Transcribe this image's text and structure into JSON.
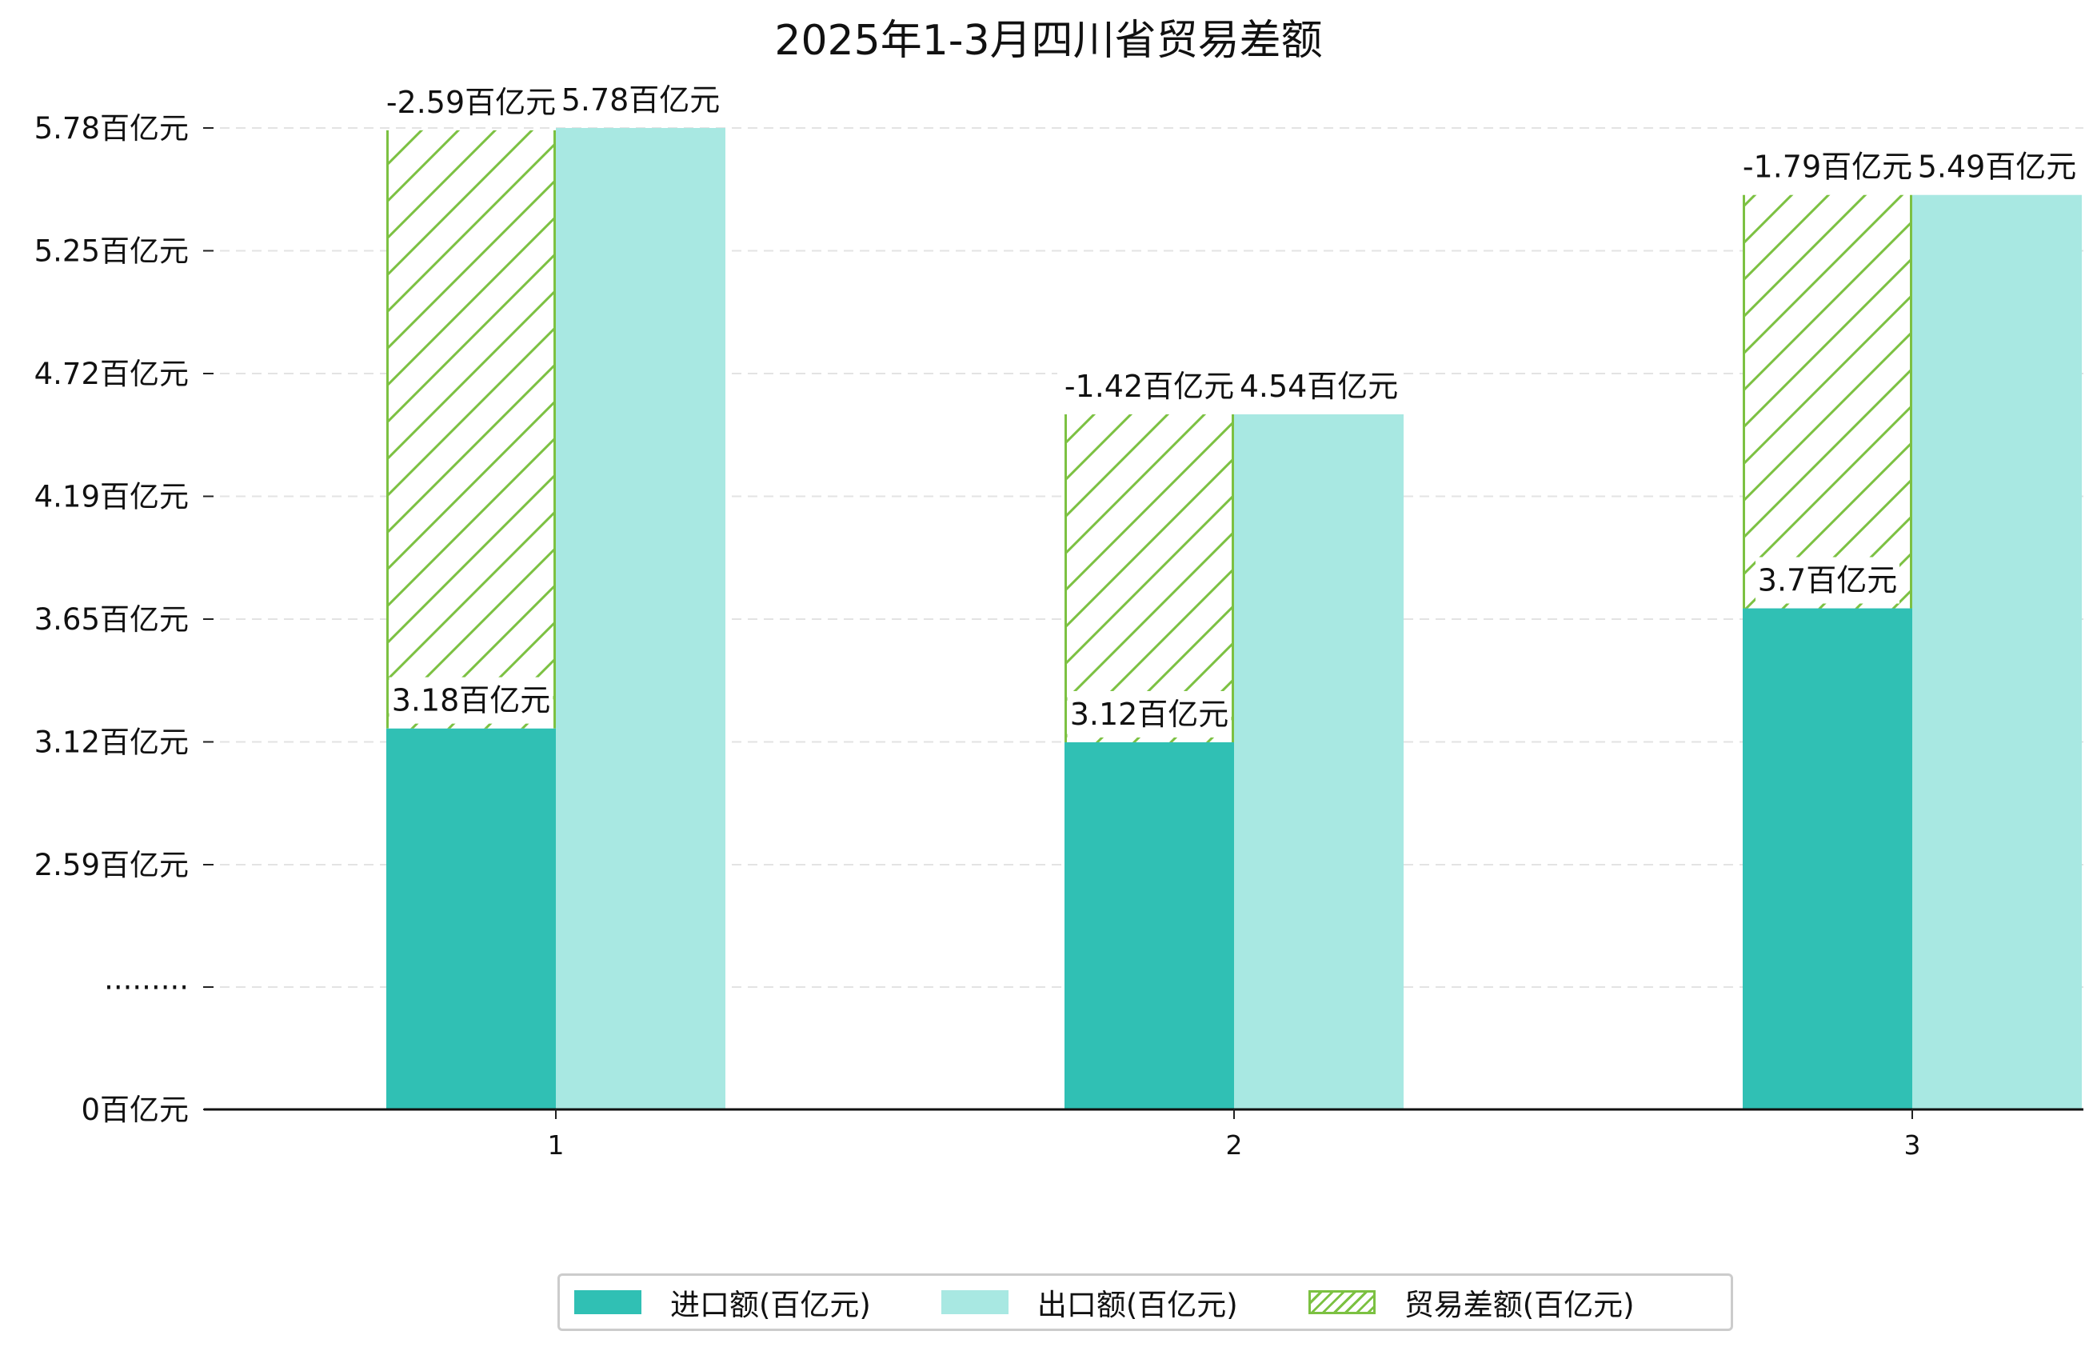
{
  "chart_data": {
    "type": "bar",
    "title": "2025年1-3月四川省贸易差额",
    "categories": [
      "1",
      "2",
      "3"
    ],
    "series": [
      {
        "name": "进口额(百亿元)",
        "values": [
          3.18,
          3.12,
          3.7
        ],
        "color": "#30c0b4"
      },
      {
        "name": "出口额(百亿元)",
        "values": [
          5.78,
          4.54,
          5.49
        ],
        "color": "#a8e8e2"
      },
      {
        "name": "贸易差额(百亿元)",
        "values": [
          -2.59,
          -1.42,
          -1.79
        ],
        "color": "#7cc142",
        "pattern": "hatch"
      }
    ],
    "labels": {
      "import": [
        "3.18百亿元",
        "3.12百亿元",
        "3.7百亿元"
      ],
      "export": [
        "5.78百亿元",
        "4.54百亿元",
        "5.49百亿元"
      ],
      "balance": [
        "-2.59百亿元",
        "-1.42百亿元",
        "-1.79百亿元"
      ]
    },
    "y_ticks": [
      "0百亿元",
      "·········",
      "2.59百亿元",
      "3.12百亿元",
      "3.65百亿元",
      "4.19百亿元",
      "4.72百亿元",
      "5.25百亿元",
      "5.78百亿元"
    ],
    "ylim": [
      0,
      5.78
    ],
    "axis_break": true,
    "grid": "y-dashed",
    "legend_position": "bottom-center"
  }
}
